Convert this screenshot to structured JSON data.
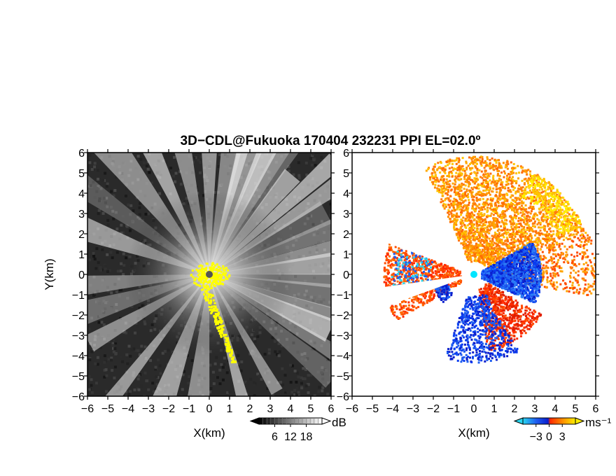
{
  "figure": {
    "title": "3D−CDL@Fukuoka 170404 232231 PPI EL=02.0º"
  },
  "chart_data": [
    {
      "type": "heatmap",
      "panel": "left",
      "quantity": "backscatter intensity",
      "xlabel": "X(km)",
      "ylabel": "Y(km)",
      "xlim": [
        -6,
        6
      ],
      "ylim": [
        -6,
        6
      ],
      "xticks": [
        -6,
        -5,
        -4,
        -3,
        -2,
        -1,
        0,
        1,
        2,
        3,
        4,
        5,
        6
      ],
      "yticks": [
        -6,
        -5,
        -4,
        -3,
        -2,
        -1,
        0,
        1,
        2,
        3,
        4,
        5,
        6
      ],
      "colorbar": {
        "unit": "dB",
        "ticks": [
          6,
          12,
          18
        ],
        "range": [
          0,
          24
        ],
        "colors": [
          "#000000",
          "#ffffff"
        ]
      },
      "radar_site": [
        0,
        0
      ],
      "highlight_color": "#ffff00",
      "background_color": "#2a2a2a"
    },
    {
      "type": "heatmap",
      "panel": "right",
      "quantity": "Doppler velocity",
      "xlabel": "X(km)",
      "ylabel": "",
      "xlim": [
        -6,
        6
      ],
      "ylim": [
        -6,
        6
      ],
      "xticks": [
        -6,
        -5,
        -4,
        -3,
        -2,
        -1,
        0,
        1,
        2,
        3,
        4,
        5,
        6
      ],
      "yticks": [
        -6,
        -5,
        -4,
        -3,
        -2,
        -1,
        0,
        1,
        2,
        3,
        4,
        5,
        6
      ],
      "colorbar": {
        "unit": "ms⁻¹",
        "ticks": [
          -3,
          0,
          3
        ],
        "range": [
          -6,
          6
        ],
        "colors": [
          "#29d6f0",
          "#1f5ff0",
          "#0a1ecc",
          "#ff2a00",
          "#ff8c00",
          "#ffee00"
        ]
      },
      "radar_site": [
        0,
        0
      ],
      "site_color": "#00e5ff"
    }
  ]
}
